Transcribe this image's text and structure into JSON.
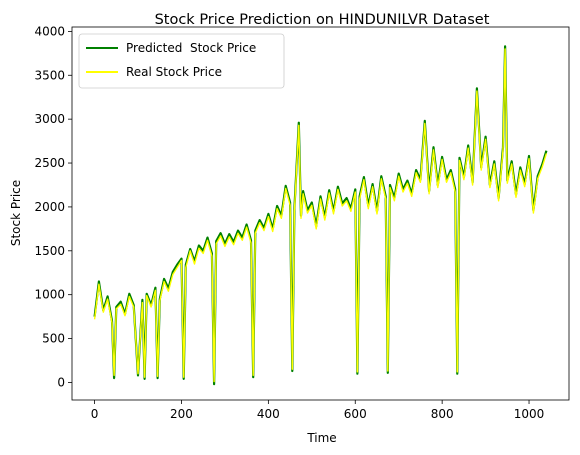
{
  "chart_data": {
    "type": "line",
    "title": "Stock Price Prediction on HINDUNILVR Dataset",
    "xlabel": "Time",
    "ylabel": "Stock Price",
    "xlim": [
      -52,
      1092
    ],
    "ylim": [
      -200,
      4050
    ],
    "xticks": [
      0,
      200,
      400,
      600,
      800,
      1000
    ],
    "yticks": [
      0,
      500,
      1000,
      1500,
      2000,
      2500,
      3000,
      3500,
      4000
    ],
    "grid": false,
    "legend_position": "top-left",
    "series": [
      {
        "name": "Predicted  Stock Price",
        "color": "#008000",
        "x": [
          0,
          10,
          20,
          30,
          40,
          45,
          50,
          60,
          70,
          80,
          90,
          100,
          110,
          115,
          120,
          130,
          140,
          145,
          150,
          160,
          170,
          180,
          190,
          200,
          205,
          210,
          220,
          230,
          240,
          250,
          260,
          270,
          275,
          280,
          290,
          300,
          310,
          320,
          330,
          340,
          350,
          360,
          365,
          370,
          380,
          390,
          400,
          410,
          420,
          430,
          440,
          450,
          455,
          460,
          470,
          475,
          480,
          490,
          500,
          510,
          520,
          530,
          540,
          550,
          560,
          570,
          580,
          590,
          600,
          605,
          610,
          620,
          630,
          640,
          650,
          660,
          670,
          675,
          680,
          690,
          700,
          710,
          720,
          730,
          740,
          750,
          760,
          770,
          780,
          790,
          800,
          810,
          820,
          830,
          835,
          840,
          850,
          860,
          870,
          880,
          890,
          900,
          910,
          920,
          930,
          940,
          945,
          950,
          960,
          970,
          980,
          990,
          1000,
          1010,
          1020,
          1030,
          1040
        ],
        "y": [
          750,
          1150,
          820,
          980,
          700,
          50,
          860,
          920,
          780,
          1010,
          880,
          80,
          940,
          40,
          1010,
          880,
          1080,
          50,
          950,
          1180,
          1070,
          1260,
          1340,
          1410,
          40,
          1340,
          1520,
          1380,
          1560,
          1500,
          1650,
          1470,
          -20,
          1610,
          1700,
          1580,
          1690,
          1600,
          1730,
          1650,
          1800,
          1620,
          60,
          1730,
          1850,
          1760,
          1920,
          1750,
          2010,
          1900,
          2240,
          2050,
          130,
          1980,
          2960,
          1900,
          2180,
          1960,
          2050,
          1780,
          2120,
          1880,
          2190,
          1950,
          2230,
          2040,
          2100,
          1980,
          2200,
          100,
          2120,
          2340,
          2010,
          2260,
          1950,
          2350,
          2120,
          110,
          2250,
          2100,
          2380,
          2200,
          2300,
          2150,
          2420,
          2310,
          2980,
          2180,
          2680,
          2250,
          2570,
          2310,
          2420,
          2200,
          100,
          2560,
          2340,
          2700,
          2280,
          3350,
          2450,
          2800,
          2250,
          2520,
          2100,
          2680,
          3830,
          2300,
          2520,
          2140,
          2450,
          2260,
          2580,
          1960,
          2350,
          2480,
          2640
        ]
      },
      {
        "name": "Real Stock Price",
        "color": "#ffff00",
        "x": [
          0,
          10,
          20,
          30,
          40,
          45,
          50,
          60,
          70,
          80,
          90,
          100,
          110,
          115,
          120,
          130,
          140,
          145,
          150,
          160,
          170,
          180,
          190,
          200,
          205,
          210,
          220,
          230,
          240,
          250,
          260,
          270,
          275,
          280,
          290,
          300,
          310,
          320,
          330,
          340,
          350,
          360,
          365,
          370,
          380,
          390,
          400,
          410,
          420,
          430,
          440,
          450,
          455,
          460,
          470,
          475,
          480,
          490,
          500,
          510,
          520,
          530,
          540,
          550,
          560,
          570,
          580,
          590,
          600,
          605,
          610,
          620,
          630,
          640,
          650,
          660,
          670,
          675,
          680,
          690,
          700,
          710,
          720,
          730,
          740,
          750,
          760,
          770,
          780,
          790,
          800,
          810,
          820,
          830,
          835,
          840,
          850,
          860,
          870,
          880,
          890,
          900,
          910,
          920,
          930,
          940,
          945,
          950,
          960,
          970,
          980,
          990,
          1000,
          1010,
          1020,
          1030,
          1040
        ],
        "y": [
          720,
          1120,
          800,
          950,
          680,
          80,
          840,
          890,
          760,
          980,
          860,
          100,
          910,
          60,
          990,
          860,
          1050,
          70,
          930,
          1150,
          1040,
          1230,
          1310,
          1390,
          60,
          1310,
          1500,
          1350,
          1530,
          1470,
          1620,
          1440,
          10,
          1580,
          1670,
          1550,
          1660,
          1570,
          1700,
          1620,
          1770,
          1590,
          80,
          1700,
          1820,
          1730,
          1890,
          1720,
          1980,
          1870,
          2210,
          2020,
          150,
          1950,
          2930,
          1870,
          2150,
          1930,
          2020,
          1750,
          2090,
          1850,
          2160,
          1920,
          2200,
          2010,
          2070,
          1950,
          2170,
          120,
          2090,
          2310,
          1980,
          2230,
          1920,
          2320,
          2090,
          130,
          2220,
          2070,
          2350,
          2170,
          2270,
          2120,
          2390,
          2280,
          2950,
          2150,
          2650,
          2220,
          2540,
          2280,
          2390,
          2170,
          120,
          2530,
          2310,
          2670,
          2250,
          3320,
          2420,
          2770,
          2220,
          2490,
          2070,
          2650,
          3800,
          2270,
          2490,
          2110,
          2420,
          2230,
          2550,
          1930,
          2320,
          2450,
          2610
        ]
      }
    ]
  }
}
